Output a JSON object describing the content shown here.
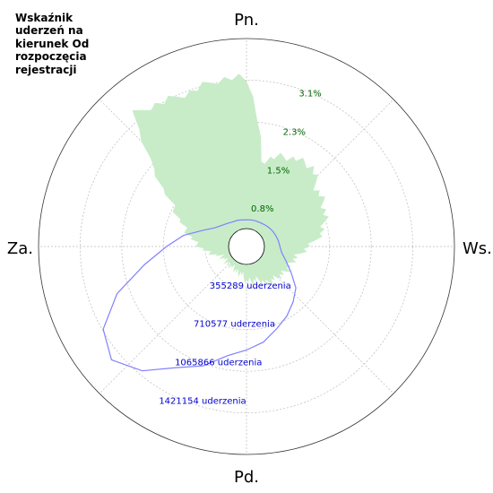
{
  "chart_data": {
    "type": "polar-area-line",
    "title": "Wskaźnik\nuderzeń na\nkierunek Od\nrozpoczęcia\nrejestracji",
    "directions": {
      "north": "Pn.",
      "east": "Ws.",
      "south": "Pd.",
      "west": "Za."
    },
    "percent_axis": {
      "ticks": [
        {
          "value": 0.8,
          "label": "0.8%"
        },
        {
          "value": 1.5,
          "label": "1.5%"
        },
        {
          "value": 2.3,
          "label": "2.3%"
        },
        {
          "value": 3.1,
          "label": "3.1%"
        }
      ],
      "label_bearing_deg": 22.5,
      "color": "#006400"
    },
    "count_axis": {
      "ticks": [
        {
          "value": 355289,
          "label": "355289 uderzenia"
        },
        {
          "value": 710577,
          "label": "710577 uderzenia"
        },
        {
          "value": 1065866,
          "label": "1065866 uderzenia"
        },
        {
          "value": 1421154,
          "label": "1421154 uderzenia"
        }
      ],
      "label_bearing_deg": 202.5,
      "color": "#0000cd"
    },
    "rings": 5,
    "grid": true,
    "area_series": {
      "unit": "%",
      "color": "#c8ecc8",
      "bearings_deg": [
        0,
        10,
        20,
        30,
        40,
        50,
        60,
        70,
        80,
        90,
        100,
        110,
        120,
        130,
        140,
        150,
        160,
        170,
        180,
        190,
        200,
        210,
        220,
        230,
        240,
        250,
        260,
        270,
        280,
        290,
        300,
        310,
        320,
        330,
        340,
        350
      ],
      "values": [
        3.1,
        1.4,
        1.6,
        1.7,
        1.75,
        1.5,
        1.45,
        1.35,
        1.2,
        0.9,
        0.7,
        0.6,
        0.6,
        0.55,
        0.5,
        0.5,
        0.35,
        0.35,
        0.35,
        0.2,
        0.2,
        0.15,
        0.15,
        0.15,
        0.15,
        0.2,
        0.4,
        0.6,
        0.8,
        1.05,
        1.4,
        2.1,
        3.2,
        3.05,
        3.0,
        3.1
      ]
    },
    "line_series": {
      "unit": "uderzenia",
      "color": "#8080ff",
      "bearings_deg": [
        0,
        10,
        20,
        30,
        40,
        50,
        60,
        70,
        80,
        90,
        100,
        110,
        120,
        130,
        140,
        150,
        160,
        170,
        180,
        190,
        200,
        210,
        220,
        230,
        240,
        250,
        260,
        270,
        280,
        290,
        300,
        310,
        320,
        330,
        340,
        350
      ],
      "values": [
        82000,
        85000,
        87000,
        90000,
        97000,
        107000,
        117000,
        125000,
        135000,
        145000,
        167000,
        225000,
        312000,
        435000,
        510000,
        585000,
        652000,
        740000,
        800000,
        870000,
        1020000,
        1140000,
        1350000,
        1480000,
        1380000,
        1120000,
        800000,
        580000,
        430000,
        270000,
        180000,
        138000,
        113000,
        97000,
        92000,
        85000
      ]
    }
  }
}
